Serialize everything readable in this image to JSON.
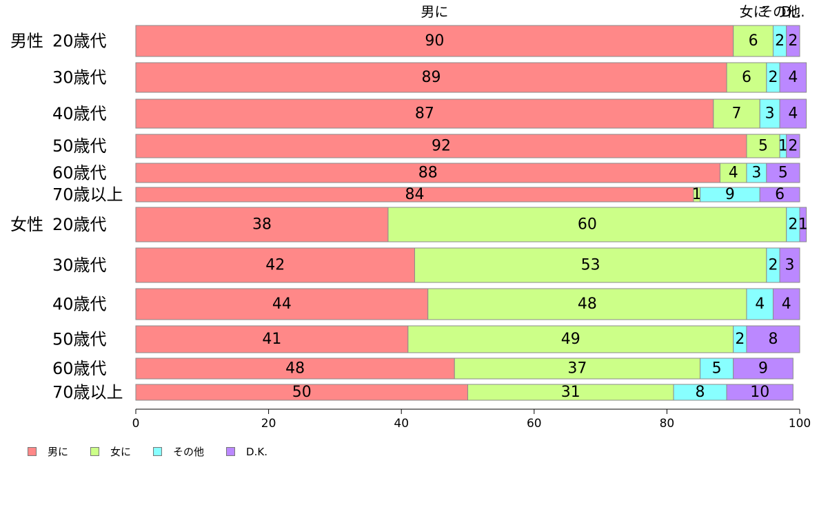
{
  "chart_data": {
    "type": "bar",
    "orientation": "horizontal",
    "stacked": true,
    "xlim": [
      0,
      100
    ],
    "x_ticks": [
      "0",
      "20",
      "40",
      "60",
      "80",
      "100"
    ],
    "top_labels": [
      "男に",
      "女に",
      "その他",
      "D..."
    ],
    "colors": [
      "#ff8888",
      "#ccff88",
      "#88ffff",
      "#bb88ff"
    ],
    "legend_position": "bottom-left",
    "categories": [
      {
        "group": "男性",
        "label": "20歳代"
      },
      {
        "group": "",
        "label": "30歳代"
      },
      {
        "group": "",
        "label": "40歳代"
      },
      {
        "group": "",
        "label": "50歳代"
      },
      {
        "group": "",
        "label": "60歳代"
      },
      {
        "group": "",
        "label": "70歳以上"
      },
      {
        "group": "女性",
        "label": "20歳代"
      },
      {
        "group": "",
        "label": "30歳代"
      },
      {
        "group": "",
        "label": "40歳代"
      },
      {
        "group": "",
        "label": "50歳代"
      },
      {
        "group": "",
        "label": "60歳代"
      },
      {
        "group": "",
        "label": "70歳以上"
      }
    ],
    "series": [
      {
        "name": "男に",
        "values": [
          90,
          89,
          87,
          92,
          88,
          84,
          38,
          42,
          44,
          41,
          48,
          50
        ]
      },
      {
        "name": "女に",
        "values": [
          6,
          6,
          7,
          5,
          4,
          1,
          60,
          53,
          48,
          49,
          37,
          31
        ]
      },
      {
        "name": "その他",
        "values": [
          2,
          2,
          3,
          1,
          3,
          9,
          2,
          2,
          4,
          2,
          5,
          8
        ]
      },
      {
        "name": "D.K.",
        "values": [
          2,
          4,
          4,
          2,
          5,
          6,
          1,
          3,
          4,
          8,
          9,
          10
        ]
      }
    ]
  }
}
